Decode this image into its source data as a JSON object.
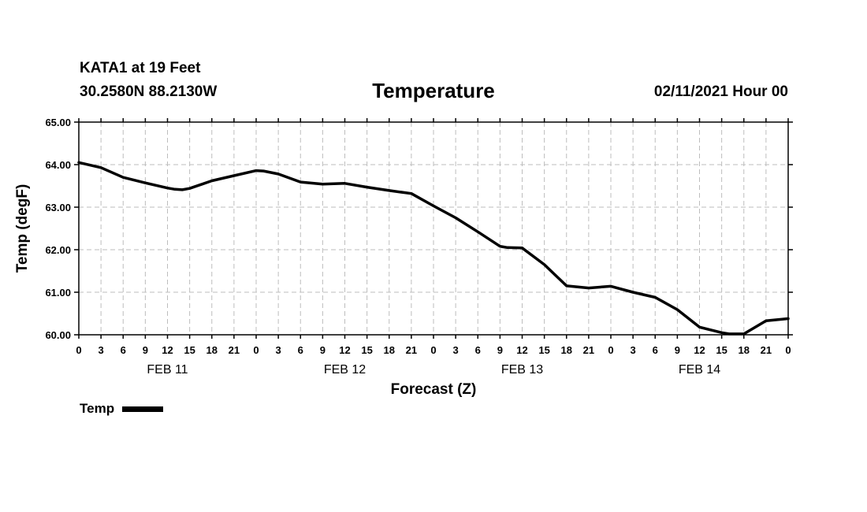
{
  "header": {
    "station": "KATA1 at 19 Feet",
    "coords": "30.2580N 88.2130W",
    "title": "Temperature",
    "date": "02/11/2021 Hour 00"
  },
  "chart_data": {
    "type": "line",
    "title": "Temperature",
    "xlabel": "Forecast (Z)",
    "ylabel": "Temp (degF)",
    "ylim": [
      60.0,
      65.0
    ],
    "yticks": [
      "60.00",
      "61.00",
      "62.00",
      "63.00",
      "64.00",
      "65.00"
    ],
    "xlim": [
      0,
      96
    ],
    "xtick_labels": [
      "0",
      "3",
      "6",
      "9",
      "12",
      "15",
      "18",
      "21",
      "0",
      "3",
      "6",
      "9",
      "12",
      "15",
      "18",
      "21",
      "0",
      "3",
      "6",
      "9",
      "12",
      "15",
      "18",
      "21",
      "0",
      "3",
      "6",
      "9",
      "12",
      "15",
      "18",
      "21",
      "0"
    ],
    "day_labels": [
      {
        "label": "FEB 11",
        "hour": 12
      },
      {
        "label": "FEB 12",
        "hour": 36
      },
      {
        "label": "FEB 13",
        "hour": 60
      },
      {
        "label": "FEB 14",
        "hour": 84
      }
    ],
    "grid": true,
    "series": [
      {
        "name": "Temp",
        "color": "#000000",
        "x": [
          0,
          3,
          6,
          9,
          12,
          13,
          14,
          15,
          18,
          21,
          24,
          25,
          27,
          30,
          33,
          36,
          39,
          42,
          45,
          48,
          51,
          54,
          57,
          58,
          60,
          63,
          66,
          69,
          72,
          75,
          78,
          81,
          84,
          87,
          88,
          90,
          93,
          96
        ],
        "values": [
          64.05,
          63.93,
          63.7,
          63.57,
          63.45,
          63.42,
          63.41,
          63.44,
          63.62,
          63.74,
          63.86,
          63.85,
          63.78,
          63.59,
          63.54,
          63.56,
          63.47,
          63.39,
          63.32,
          63.03,
          62.75,
          62.42,
          62.08,
          62.05,
          62.04,
          61.65,
          61.15,
          61.1,
          61.14,
          61.0,
          60.88,
          60.59,
          60.18,
          60.05,
          60.02,
          60.02,
          60.33,
          60.38
        ]
      }
    ]
  },
  "legend": {
    "label": "Temp",
    "color": "#000000"
  }
}
